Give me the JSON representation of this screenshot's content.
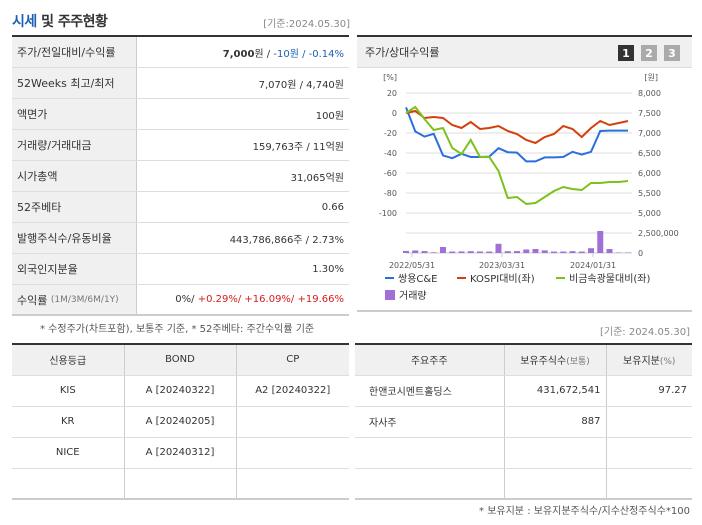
{
  "header": {
    "title_hl": "시세",
    "title_rest": " 및 주주현황",
    "asof": "[기준:2024.05.30]"
  },
  "quote": {
    "rows": [
      {
        "label": "주가/전일대비/수익률"
      },
      {
        "label": "52Weeks 최고/최저",
        "value": "7,070원 / 4,740원"
      },
      {
        "label": "액면가",
        "value": "100원"
      },
      {
        "label": "거래량/거래대금",
        "value": "159,763주 / 11억원"
      },
      {
        "label": "시가총액",
        "value": "31,065억원"
      },
      {
        "label": "52주베타",
        "value": "0.66"
      },
      {
        "label": "발행주식수/유동비율",
        "value": "443,786,866주 / 2.73%"
      },
      {
        "label": "외국인지분율",
        "value": "1.30%"
      },
      {
        "label": "수익률",
        "label_sub": "(1M/3M/6M/1Y)"
      }
    ],
    "price": "7,000",
    "price_unit": "원 / ",
    "change": "-10원 / -0.14%",
    "returns": {
      "r1m": "0%/ ",
      "r3m": "+0.29%/ ",
      "r6m": "+16.09%/ ",
      "r1y": "+19.66%"
    },
    "note": "* 수정주가(차트포함), 보통주 기준, * 52주베타: 주간수익률 기준"
  },
  "chart_panel": {
    "title": "주가/상대수익률",
    "pages": [
      "1",
      "2",
      "3"
    ],
    "active_page": "1"
  },
  "chart_data": {
    "type": "line",
    "title": "주가/상대수익률",
    "ylabel_left": "[%]",
    "ylabel_right": "[원]",
    "left_ticks": [
      "20",
      "0",
      "-20",
      "-40",
      "-60",
      "-80",
      "-100"
    ],
    "right_ticks": [
      "8,000",
      "7,500",
      "7,000",
      "6,500",
      "6,000",
      "5,500",
      "5,000"
    ],
    "vol_ticks": [
      "2,500,000",
      "0"
    ],
    "x_ticks": [
      "2022/05/31",
      "2023/03/31",
      "2024/01/31"
    ],
    "series": [
      {
        "name": "쌍용C&E",
        "color": "#2a6fdb",
        "axis": "right",
        "values": [
          7640,
          7040,
          6910,
          6980,
          6440,
          6370,
          6480,
          6400,
          6400,
          6410,
          6620,
          6520,
          6510,
          6290,
          6290,
          6390,
          6390,
          6400,
          6530,
          6460,
          6530,
          7050,
          7060,
          7060,
          7060
        ]
      },
      {
        "name": "KOSPI대비(좌)",
        "color": "#d4400c",
        "axis": "left",
        "values": [
          0,
          2,
          -5,
          -4,
          -5,
          -12,
          -15,
          -9,
          -16,
          -15,
          -13,
          -18,
          -21,
          -27,
          -30,
          -24,
          -21,
          -13,
          -16,
          -24,
          -15,
          -8,
          -12,
          -10,
          -8
        ]
      },
      {
        "name": "비금속광물대비(좌)",
        "color": "#7cc11c",
        "axis": "left",
        "values": [
          0,
          6,
          -6,
          -17,
          -15,
          -35,
          -41,
          -27,
          -44,
          -44,
          -58,
          -85,
          -84,
          -91,
          -90,
          -84,
          -78,
          -74,
          -76,
          -77,
          -70,
          -70,
          -69,
          -69,
          -68
        ]
      },
      {
        "name": "거래량",
        "color": "#a070d8",
        "type": "bar",
        "values": [
          260000,
          320000,
          240000,
          90000,
          750000,
          180000,
          200000,
          230000,
          190000,
          180000,
          1150000,
          230000,
          240000,
          440000,
          500000,
          330000,
          180000,
          180000,
          230000,
          180000,
          600000,
          2750000,
          500000,
          60000,
          60000
        ]
      }
    ]
  },
  "asof2": "[기준: 2024.05.30]",
  "credit": {
    "headers": [
      "신용등급",
      "BOND",
      "CP"
    ],
    "rows": [
      [
        "KIS",
        "A [20240322]",
        "A2 [20240322]"
      ],
      [
        "KR",
        "A [20240205]",
        ""
      ],
      [
        "NICE",
        "A [20240312]",
        ""
      ],
      [
        "",
        "",
        ""
      ]
    ]
  },
  "holders": {
    "headers": [
      "주요주주",
      "보유주식수",
      "(보통)",
      "보유지분",
      "(%)"
    ],
    "rows": [
      [
        "한앤코시멘트홀딩스",
        "431,672,541",
        "97.27"
      ],
      [
        "자사주",
        "887",
        ""
      ],
      [
        "",
        "",
        ""
      ],
      [
        "",
        "",
        ""
      ]
    ],
    "note": "* 보유지분 : 보유지분주식수/지수산정주식수*100"
  }
}
